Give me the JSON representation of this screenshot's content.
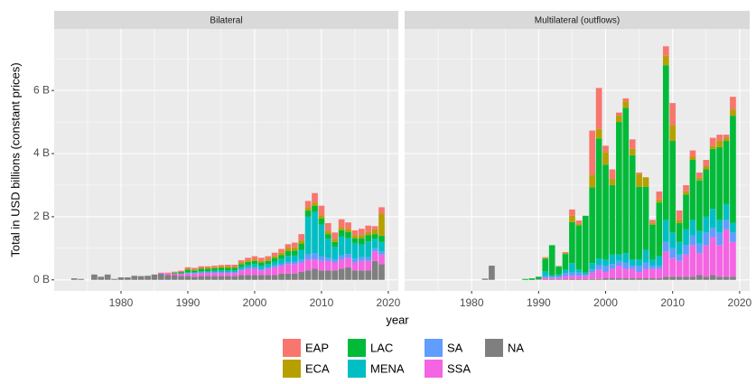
{
  "chart_data": {
    "type": "bar",
    "stacked": true,
    "ylabel": "Total in USD billions (constant prices)",
    "xlabel": "year",
    "x": [
      1973,
      1974,
      1975,
      1976,
      1977,
      1978,
      1979,
      1980,
      1981,
      1982,
      1983,
      1984,
      1985,
      1986,
      1987,
      1988,
      1989,
      1990,
      1991,
      1992,
      1993,
      1994,
      1995,
      1996,
      1997,
      1998,
      1999,
      2000,
      2001,
      2002,
      2003,
      2004,
      2005,
      2006,
      2007,
      2008,
      2009,
      2010,
      2011,
      2012,
      2013,
      2014,
      2015,
      2016,
      2017,
      2018,
      2019
    ],
    "xlim": [
      1970,
      2021.5
    ],
    "xticks": [
      1980,
      1990,
      2000,
      2010,
      2020
    ],
    "minor_xticks": [
      1975,
      1985,
      1995,
      2005,
      2015
    ],
    "ylim": [
      -0.35,
      7.95
    ],
    "yticks": [
      {
        "value": 0,
        "label": "0 B"
      },
      {
        "value": 2,
        "label": "2 B"
      },
      {
        "value": 4,
        "label": "4 B"
      },
      {
        "value": 6,
        "label": "6 B"
      }
    ],
    "minor_yticks": [
      1,
      3,
      5,
      7
    ],
    "grid": true,
    "legend": "bottom",
    "series": [
      {
        "name": "EAP",
        "color": "#F8766D"
      },
      {
        "name": "ECA",
        "color": "#B79F00"
      },
      {
        "name": "LAC",
        "color": "#00BA38"
      },
      {
        "name": "MENA",
        "color": "#00BFC4"
      },
      {
        "name": "SA",
        "color": "#619CFF"
      },
      {
        "name": "SSA",
        "color": "#F564E3"
      },
      {
        "name": "NA",
        "color": "#7F7F7F"
      }
    ],
    "facets": [
      {
        "title": "Bilateral",
        "values": [
          [
            0,
            0,
            0,
            0,
            0,
            0,
            0,
            0,
            0,
            0,
            0,
            0,
            0,
            0,
            0.03,
            0.03,
            0.04,
            0.05,
            0.05,
            0.05,
            0.05,
            0.05,
            0.05,
            0.06,
            0.06,
            0.07,
            0.08,
            0.1,
            0.1,
            0.1,
            0.1,
            0.12,
            0.12,
            0.15,
            0.2,
            0.2,
            0.3,
            0.3,
            0.25,
            0.2,
            0.25,
            0.2,
            0.15,
            0.2,
            0.2,
            0.1,
            0.2
          ],
          [
            0,
            0,
            0,
            0,
            0,
            0,
            0,
            0,
            0,
            0,
            0,
            0,
            0,
            0,
            0,
            0,
            0,
            0.03,
            0.03,
            0.03,
            0.03,
            0.03,
            0.04,
            0.04,
            0.04,
            0.05,
            0.05,
            0.05,
            0.05,
            0.05,
            0.06,
            0.08,
            0.1,
            0.1,
            0.1,
            0.1,
            0.1,
            0.1,
            0.1,
            0.1,
            0.1,
            0.1,
            0.1,
            0.1,
            0.1,
            0.15,
            0.7
          ],
          [
            0,
            0,
            0,
            0,
            0,
            0,
            0,
            0,
            0,
            0,
            0,
            0,
            0,
            0,
            0,
            0.03,
            0.05,
            0.08,
            0.06,
            0.08,
            0.08,
            0.08,
            0.08,
            0.08,
            0.08,
            0.1,
            0.1,
            0.1,
            0.1,
            0.1,
            0.12,
            0.12,
            0.15,
            0.15,
            0.2,
            0.2,
            0.2,
            0.2,
            0.15,
            0.15,
            0.2,
            0.2,
            0.15,
            0.2,
            0.2,
            0.15,
            0.2
          ],
          [
            0,
            0,
            0,
            0,
            0,
            0,
            0,
            0,
            0,
            0,
            0,
            0,
            0,
            0,
            0,
            0,
            0,
            0.02,
            0.02,
            0.03,
            0.03,
            0.04,
            0.05,
            0.05,
            0.05,
            0.06,
            0.08,
            0.1,
            0.1,
            0.1,
            0.12,
            0.15,
            0.18,
            0.2,
            0.3,
            1.2,
            1.3,
            1.0,
            0.6,
            0.4,
            0.6,
            0.5,
            0.5,
            0.4,
            0.5,
            0.3,
            0.3
          ],
          [
            0,
            0,
            0,
            0,
            0,
            0,
            0,
            0,
            0,
            0,
            0,
            0,
            0,
            0,
            0,
            0,
            0,
            0.02,
            0.02,
            0.02,
            0.02,
            0.03,
            0.03,
            0.03,
            0.03,
            0.04,
            0.04,
            0.05,
            0.05,
            0.05,
            0.06,
            0.06,
            0.08,
            0.08,
            0.1,
            0.15,
            0.2,
            0.15,
            0.1,
            0.1,
            0.12,
            0.12,
            0.12,
            0.12,
            0.12,
            0.1,
            0.1
          ],
          [
            0,
            0,
            0,
            0,
            0,
            0,
            0,
            0,
            0,
            0,
            0,
            0,
            0,
            0.03,
            0.05,
            0.05,
            0.08,
            0.08,
            0.1,
            0.1,
            0.1,
            0.1,
            0.1,
            0.1,
            0.1,
            0.15,
            0.2,
            0.2,
            0.15,
            0.2,
            0.25,
            0.25,
            0.3,
            0.3,
            0.3,
            0.35,
            0.3,
            0.3,
            0.3,
            0.25,
            0.3,
            0.3,
            0.25,
            0.3,
            0.3,
            0.3,
            0.3
          ],
          [
            0.05,
            0.03,
            0,
            0.17,
            0.1,
            0.17,
            0.03,
            0.08,
            0.08,
            0.13,
            0.12,
            0.13,
            0.17,
            0.2,
            0.15,
            0.15,
            0.12,
            0.12,
            0.1,
            0.12,
            0.12,
            0.12,
            0.12,
            0.12,
            0.12,
            0.15,
            0.15,
            0.15,
            0.15,
            0.15,
            0.15,
            0.2,
            0.2,
            0.2,
            0.25,
            0.3,
            0.35,
            0.3,
            0.3,
            0.3,
            0.35,
            0.4,
            0.3,
            0.3,
            0.3,
            0.6,
            0.5
          ]
        ]
      },
      {
        "title": "Multilateral (outflows)",
        "values": [
          [
            0,
            0,
            0,
            0,
            0,
            0,
            0,
            0,
            0,
            0,
            0,
            0,
            0,
            0,
            0,
            0,
            0,
            0,
            0.02,
            0,
            0,
            0.03,
            0.2,
            0.1,
            0,
            1.4,
            1.3,
            0.2,
            0.3,
            0.1,
            0.1,
            0.3,
            0.05,
            0,
            0.1,
            0.25,
            0.3,
            0.7,
            0.3,
            0.2,
            0.2,
            0.15,
            0.2,
            0.25,
            0.2,
            0.1,
            0.4
          ],
          [
            0,
            0,
            0,
            0,
            0,
            0,
            0,
            0,
            0,
            0,
            0,
            0,
            0,
            0,
            0,
            0,
            0,
            0,
            0.03,
            0,
            0.02,
            0.03,
            0.2,
            0.05,
            0,
            0.4,
            0.3,
            0.4,
            0.2,
            0.2,
            0.2,
            0.2,
            0.4,
            0.3,
            0.05,
            0.1,
            0.3,
            0.5,
            0.1,
            0.1,
            0.1,
            0.1,
            0.1,
            0.1,
            0.2,
            0.1,
            0.2
          ],
          [
            0,
            0,
            0,
            0,
            0,
            0,
            0,
            0,
            0,
            0,
            0,
            0,
            0,
            0,
            0,
            0.03,
            0.05,
            0.08,
            0.4,
            0.95,
            0.25,
            0.5,
            1.3,
            1.4,
            1.8,
            2.4,
            3.8,
            3.0,
            2.2,
            4.2,
            4.6,
            3.3,
            2.3,
            2.0,
            1.1,
            1.7,
            4.9,
            2.9,
            0.6,
            1.1,
            1.9,
            1.6,
            1.5,
            1.9,
            2.3,
            2.0,
            3.4
          ],
          [
            0,
            0,
            0,
            0,
            0,
            0,
            0,
            0,
            0,
            0,
            0,
            0,
            0,
            0,
            0,
            0,
            0,
            0,
            0.15,
            0.05,
            0.05,
            0.1,
            0.3,
            0.1,
            0.05,
            0.2,
            0.2,
            0.2,
            0.3,
            0.2,
            0.3,
            0.2,
            0.2,
            0.4,
            0.2,
            0.3,
            0.7,
            0.5,
            0.4,
            0.5,
            0.5,
            0.4,
            0.5,
            0.6,
            0.4,
            0.5,
            0.3
          ],
          [
            0,
            0,
            0,
            0,
            0,
            0,
            0,
            0,
            0,
            0,
            0,
            0,
            0,
            0,
            0,
            0,
            0,
            0,
            0.05,
            0.03,
            0.05,
            0.1,
            0.1,
            0.1,
            0.05,
            0.1,
            0.15,
            0.2,
            0.15,
            0.15,
            0.2,
            0.1,
            0.2,
            0.2,
            0.1,
            0.1,
            0.3,
            0.3,
            0.2,
            0.3,
            0.3,
            0.3,
            0.4,
            0.3,
            0.4,
            0.3,
            0.3
          ],
          [
            0,
            0,
            0,
            0,
            0,
            0,
            0,
            0,
            0,
            0,
            0,
            0,
            0,
            0,
            0,
            0,
            0,
            0.02,
            0.05,
            0.05,
            0.05,
            0.1,
            0.1,
            0.1,
            0.1,
            0.2,
            0.3,
            0.2,
            0.3,
            0.4,
            0.3,
            0.3,
            0.2,
            0.3,
            0.3,
            0.3,
            0.8,
            0.6,
            0.5,
            0.7,
            1.0,
            0.7,
            1.0,
            1.2,
            1.0,
            1.5,
            1.1
          ],
          [
            0,
            0,
            0,
            0,
            0,
            0,
            0,
            0,
            0,
            0.04,
            0.45,
            0,
            0,
            0,
            0,
            0,
            0,
            0,
            0.02,
            0.02,
            0.02,
            0.02,
            0.03,
            0.03,
            0.03,
            0.03,
            0.03,
            0.05,
            0.05,
            0.05,
            0.05,
            0.05,
            0.05,
            0.05,
            0.05,
            0.05,
            0.1,
            0.1,
            0.1,
            0.1,
            0.1,
            0.15,
            0.1,
            0.15,
            0.1,
            0.1,
            0.1
          ]
        ]
      }
    ]
  }
}
